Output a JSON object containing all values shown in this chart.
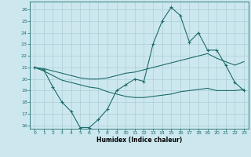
{
  "xlabel": "Humidex (Indice chaleur)",
  "bg_color": "#cce8ee",
  "grid_color": "#aacdd8",
  "line_color": "#1e6b6b",
  "xlim": [
    -0.5,
    23.5
  ],
  "ylim": [
    15.7,
    26.7
  ],
  "xticks": [
    0,
    1,
    2,
    3,
    4,
    5,
    6,
    7,
    8,
    9,
    10,
    11,
    12,
    13,
    14,
    15,
    16,
    17,
    18,
    19,
    20,
    21,
    22,
    23
  ],
  "yticks": [
    16,
    17,
    18,
    19,
    20,
    21,
    22,
    23,
    24,
    25,
    26
  ],
  "line1_x": [
    0,
    1,
    2,
    3,
    4,
    5,
    6,
    7,
    8,
    9,
    10,
    11,
    12,
    13,
    14,
    15,
    16,
    17,
    18,
    19,
    20,
    21,
    22,
    23
  ],
  "line1_y": [
    21.0,
    20.8,
    19.3,
    18.0,
    17.2,
    15.8,
    15.8,
    16.5,
    17.4,
    19.0,
    19.5,
    20.0,
    19.8,
    23.0,
    25.0,
    26.2,
    25.5,
    23.2,
    24.0,
    22.5,
    22.5,
    21.2,
    19.7,
    19.0
  ],
  "line2_x": [
    0,
    1,
    2,
    3,
    4,
    5,
    6,
    7,
    8,
    9,
    10,
    11,
    12,
    13,
    14,
    15,
    16,
    17,
    18,
    19,
    20,
    21,
    22,
    23
  ],
  "line2_y": [
    21.0,
    20.9,
    20.7,
    20.5,
    20.3,
    20.1,
    20.0,
    20.0,
    20.1,
    20.3,
    20.5,
    20.6,
    20.8,
    21.0,
    21.2,
    21.4,
    21.6,
    21.8,
    22.0,
    22.2,
    21.8,
    21.5,
    21.2,
    21.5
  ],
  "line3_x": [
    0,
    1,
    2,
    3,
    4,
    5,
    6,
    7,
    8,
    9,
    10,
    11,
    12,
    13,
    14,
    15,
    16,
    17,
    18,
    19,
    20,
    21,
    22,
    23
  ],
  "line3_y": [
    21.0,
    20.7,
    20.3,
    19.9,
    19.7,
    19.5,
    19.3,
    19.2,
    18.9,
    18.7,
    18.5,
    18.4,
    18.4,
    18.5,
    18.6,
    18.7,
    18.9,
    19.0,
    19.1,
    19.2,
    19.0,
    19.0,
    19.0,
    19.1
  ]
}
